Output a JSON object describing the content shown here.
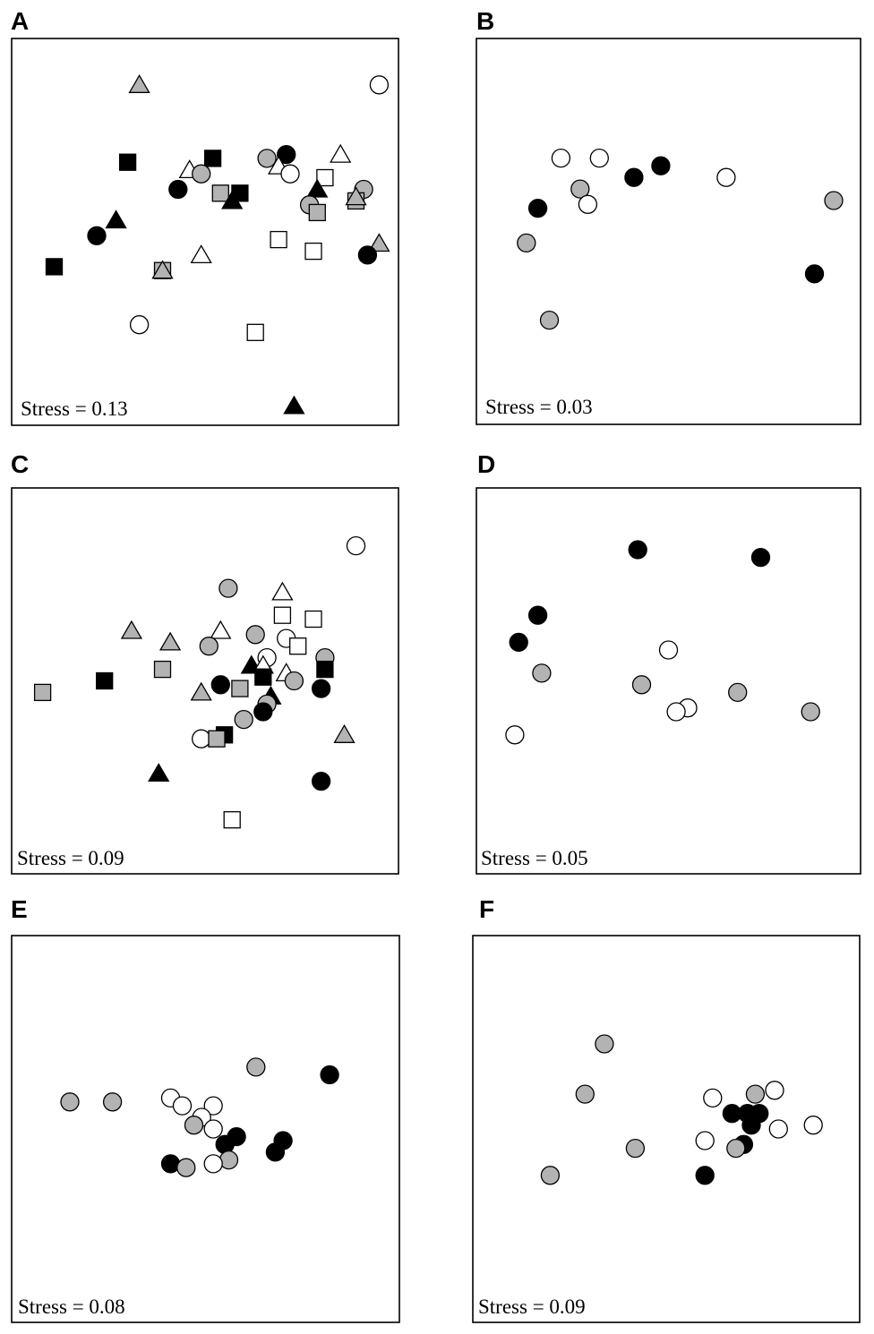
{
  "colors": {
    "black": "#000000",
    "gray": "#b3b3b3",
    "white": "#ffffff",
    "stroke": "#000000"
  },
  "panels": [
    {
      "id": "A",
      "letter": "A",
      "stress": "Stress = 0.13"
    },
    {
      "id": "B",
      "letter": "B",
      "stress": "Stress = 0.03"
    },
    {
      "id": "C",
      "letter": "C",
      "stress": "Stress = 0.09"
    },
    {
      "id": "D",
      "letter": "D",
      "stress": "Stress = 0.05"
    },
    {
      "id": "E",
      "letter": "E",
      "stress": "Stress = 0.08"
    },
    {
      "id": "F",
      "letter": "F",
      "stress": "Stress = 0.09"
    }
  ],
  "chart_data": [
    {
      "panel": "A",
      "type": "scatter",
      "points": [
        {
          "x": 0.33,
          "y": 0.88,
          "shape": "triangle",
          "fill": "gray"
        },
        {
          "x": 0.95,
          "y": 0.88,
          "shape": "circle",
          "fill": "white"
        },
        {
          "x": 0.3,
          "y": 0.68,
          "shape": "square",
          "fill": "black"
        },
        {
          "x": 0.52,
          "y": 0.69,
          "shape": "square",
          "fill": "black"
        },
        {
          "x": 0.46,
          "y": 0.66,
          "shape": "triangle",
          "fill": "white"
        },
        {
          "x": 0.49,
          "y": 0.65,
          "shape": "circle",
          "fill": "gray"
        },
        {
          "x": 0.66,
          "y": 0.69,
          "shape": "circle",
          "fill": "gray"
        },
        {
          "x": 0.71,
          "y": 0.7,
          "shape": "circle",
          "fill": "black"
        },
        {
          "x": 0.69,
          "y": 0.67,
          "shape": "triangle",
          "fill": "white"
        },
        {
          "x": 0.72,
          "y": 0.65,
          "shape": "circle",
          "fill": "white"
        },
        {
          "x": 0.85,
          "y": 0.7,
          "shape": "triangle",
          "fill": "white"
        },
        {
          "x": 0.81,
          "y": 0.64,
          "shape": "square",
          "fill": "white"
        },
        {
          "x": 0.91,
          "y": 0.61,
          "shape": "circle",
          "fill": "gray"
        },
        {
          "x": 0.43,
          "y": 0.61,
          "shape": "circle",
          "fill": "black"
        },
        {
          "x": 0.54,
          "y": 0.6,
          "shape": "square",
          "fill": "gray"
        },
        {
          "x": 0.59,
          "y": 0.6,
          "shape": "square",
          "fill": "black"
        },
        {
          "x": 0.57,
          "y": 0.58,
          "shape": "triangle",
          "fill": "black"
        },
        {
          "x": 0.79,
          "y": 0.61,
          "shape": "triangle",
          "fill": "black"
        },
        {
          "x": 0.77,
          "y": 0.57,
          "shape": "circle",
          "fill": "gray"
        },
        {
          "x": 0.79,
          "y": 0.55,
          "shape": "square",
          "fill": "gray"
        },
        {
          "x": 0.89,
          "y": 0.58,
          "shape": "square",
          "fill": "gray"
        },
        {
          "x": 0.89,
          "y": 0.59,
          "shape": "triangle",
          "fill": "gray"
        },
        {
          "x": 0.27,
          "y": 0.53,
          "shape": "triangle",
          "fill": "black"
        },
        {
          "x": 0.22,
          "y": 0.49,
          "shape": "circle",
          "fill": "black"
        },
        {
          "x": 0.11,
          "y": 0.41,
          "shape": "square",
          "fill": "black"
        },
        {
          "x": 0.95,
          "y": 0.47,
          "shape": "triangle",
          "fill": "gray"
        },
        {
          "x": 0.69,
          "y": 0.48,
          "shape": "square",
          "fill": "white"
        },
        {
          "x": 0.78,
          "y": 0.45,
          "shape": "square",
          "fill": "white"
        },
        {
          "x": 0.92,
          "y": 0.44,
          "shape": "circle",
          "fill": "black"
        },
        {
          "x": 0.49,
          "y": 0.44,
          "shape": "triangle",
          "fill": "white"
        },
        {
          "x": 0.39,
          "y": 0.4,
          "shape": "square",
          "fill": "gray"
        },
        {
          "x": 0.39,
          "y": 0.4,
          "shape": "triangle",
          "fill": "gray"
        },
        {
          "x": 0.33,
          "y": 0.26,
          "shape": "circle",
          "fill": "white"
        },
        {
          "x": 0.63,
          "y": 0.24,
          "shape": "square",
          "fill": "white"
        },
        {
          "x": 0.73,
          "y": 0.05,
          "shape": "triangle",
          "fill": "black"
        }
      ]
    },
    {
      "panel": "B",
      "type": "scatter",
      "points": [
        {
          "x": 0.22,
          "y": 0.69,
          "shape": "circle",
          "fill": "white"
        },
        {
          "x": 0.32,
          "y": 0.69,
          "shape": "circle",
          "fill": "white"
        },
        {
          "x": 0.41,
          "y": 0.64,
          "shape": "circle",
          "fill": "black"
        },
        {
          "x": 0.48,
          "y": 0.67,
          "shape": "circle",
          "fill": "black"
        },
        {
          "x": 0.65,
          "y": 0.64,
          "shape": "circle",
          "fill": "white"
        },
        {
          "x": 0.27,
          "y": 0.61,
          "shape": "circle",
          "fill": "gray"
        },
        {
          "x": 0.29,
          "y": 0.57,
          "shape": "circle",
          "fill": "white"
        },
        {
          "x": 0.16,
          "y": 0.56,
          "shape": "circle",
          "fill": "black"
        },
        {
          "x": 0.93,
          "y": 0.58,
          "shape": "circle",
          "fill": "gray"
        },
        {
          "x": 0.13,
          "y": 0.47,
          "shape": "circle",
          "fill": "gray"
        },
        {
          "x": 0.88,
          "y": 0.39,
          "shape": "circle",
          "fill": "black"
        },
        {
          "x": 0.19,
          "y": 0.27,
          "shape": "circle",
          "fill": "gray"
        }
      ]
    },
    {
      "panel": "C",
      "type": "scatter",
      "points": [
        {
          "x": 0.89,
          "y": 0.85,
          "shape": "circle",
          "fill": "white"
        },
        {
          "x": 0.56,
          "y": 0.74,
          "shape": "circle",
          "fill": "gray"
        },
        {
          "x": 0.7,
          "y": 0.73,
          "shape": "triangle",
          "fill": "white"
        },
        {
          "x": 0.7,
          "y": 0.67,
          "shape": "square",
          "fill": "white"
        },
        {
          "x": 0.78,
          "y": 0.66,
          "shape": "square",
          "fill": "white"
        },
        {
          "x": 0.31,
          "y": 0.63,
          "shape": "triangle",
          "fill": "gray"
        },
        {
          "x": 0.54,
          "y": 0.63,
          "shape": "triangle",
          "fill": "white"
        },
        {
          "x": 0.63,
          "y": 0.62,
          "shape": "circle",
          "fill": "gray"
        },
        {
          "x": 0.71,
          "y": 0.61,
          "shape": "circle",
          "fill": "white"
        },
        {
          "x": 0.41,
          "y": 0.6,
          "shape": "triangle",
          "fill": "gray"
        },
        {
          "x": 0.51,
          "y": 0.59,
          "shape": "circle",
          "fill": "gray"
        },
        {
          "x": 0.74,
          "y": 0.59,
          "shape": "square",
          "fill": "white"
        },
        {
          "x": 0.66,
          "y": 0.56,
          "shape": "circle",
          "fill": "white"
        },
        {
          "x": 0.81,
          "y": 0.56,
          "shape": "circle",
          "fill": "gray"
        },
        {
          "x": 0.62,
          "y": 0.54,
          "shape": "triangle",
          "fill": "black"
        },
        {
          "x": 0.65,
          "y": 0.54,
          "shape": "triangle",
          "fill": "white"
        },
        {
          "x": 0.81,
          "y": 0.53,
          "shape": "square",
          "fill": "black"
        },
        {
          "x": 0.39,
          "y": 0.53,
          "shape": "square",
          "fill": "gray"
        },
        {
          "x": 0.65,
          "y": 0.51,
          "shape": "square",
          "fill": "black"
        },
        {
          "x": 0.71,
          "y": 0.52,
          "shape": "triangle",
          "fill": "white"
        },
        {
          "x": 0.73,
          "y": 0.5,
          "shape": "circle",
          "fill": "gray"
        },
        {
          "x": 0.24,
          "y": 0.5,
          "shape": "square",
          "fill": "black"
        },
        {
          "x": 0.54,
          "y": 0.49,
          "shape": "circle",
          "fill": "black"
        },
        {
          "x": 0.59,
          "y": 0.48,
          "shape": "square",
          "fill": "gray"
        },
        {
          "x": 0.8,
          "y": 0.48,
          "shape": "circle",
          "fill": "black"
        },
        {
          "x": 0.08,
          "y": 0.47,
          "shape": "square",
          "fill": "gray"
        },
        {
          "x": 0.49,
          "y": 0.47,
          "shape": "triangle",
          "fill": "gray"
        },
        {
          "x": 0.67,
          "y": 0.46,
          "shape": "triangle",
          "fill": "black"
        },
        {
          "x": 0.66,
          "y": 0.44,
          "shape": "circle",
          "fill": "gray"
        },
        {
          "x": 0.65,
          "y": 0.42,
          "shape": "circle",
          "fill": "black"
        },
        {
          "x": 0.6,
          "y": 0.4,
          "shape": "circle",
          "fill": "gray"
        },
        {
          "x": 0.86,
          "y": 0.36,
          "shape": "triangle",
          "fill": "gray"
        },
        {
          "x": 0.55,
          "y": 0.36,
          "shape": "square",
          "fill": "black"
        },
        {
          "x": 0.49,
          "y": 0.35,
          "shape": "circle",
          "fill": "white"
        },
        {
          "x": 0.53,
          "y": 0.35,
          "shape": "square",
          "fill": "gray"
        },
        {
          "x": 0.38,
          "y": 0.26,
          "shape": "triangle",
          "fill": "black"
        },
        {
          "x": 0.8,
          "y": 0.24,
          "shape": "circle",
          "fill": "black"
        },
        {
          "x": 0.57,
          "y": 0.14,
          "shape": "square",
          "fill": "white"
        }
      ]
    },
    {
      "panel": "D",
      "type": "scatter",
      "points": [
        {
          "x": 0.42,
          "y": 0.84,
          "shape": "circle",
          "fill": "black"
        },
        {
          "x": 0.74,
          "y": 0.82,
          "shape": "circle",
          "fill": "black"
        },
        {
          "x": 0.16,
          "y": 0.67,
          "shape": "circle",
          "fill": "black"
        },
        {
          "x": 0.11,
          "y": 0.6,
          "shape": "circle",
          "fill": "black"
        },
        {
          "x": 0.5,
          "y": 0.58,
          "shape": "circle",
          "fill": "white"
        },
        {
          "x": 0.17,
          "y": 0.52,
          "shape": "circle",
          "fill": "gray"
        },
        {
          "x": 0.43,
          "y": 0.49,
          "shape": "circle",
          "fill": "gray"
        },
        {
          "x": 0.68,
          "y": 0.47,
          "shape": "circle",
          "fill": "gray"
        },
        {
          "x": 0.55,
          "y": 0.43,
          "shape": "circle",
          "fill": "white"
        },
        {
          "x": 0.52,
          "y": 0.42,
          "shape": "circle",
          "fill": "white"
        },
        {
          "x": 0.87,
          "y": 0.42,
          "shape": "circle",
          "fill": "gray"
        },
        {
          "x": 0.1,
          "y": 0.36,
          "shape": "circle",
          "fill": "white"
        }
      ]
    },
    {
      "panel": "E",
      "type": "scatter",
      "points": [
        {
          "x": 0.63,
          "y": 0.66,
          "shape": "circle",
          "fill": "gray"
        },
        {
          "x": 0.82,
          "y": 0.64,
          "shape": "circle",
          "fill": "black"
        },
        {
          "x": 0.15,
          "y": 0.57,
          "shape": "circle",
          "fill": "gray"
        },
        {
          "x": 0.26,
          "y": 0.57,
          "shape": "circle",
          "fill": "gray"
        },
        {
          "x": 0.41,
          "y": 0.58,
          "shape": "circle",
          "fill": "white"
        },
        {
          "x": 0.44,
          "y": 0.56,
          "shape": "circle",
          "fill": "white"
        },
        {
          "x": 0.52,
          "y": 0.56,
          "shape": "circle",
          "fill": "white"
        },
        {
          "x": 0.49,
          "y": 0.53,
          "shape": "circle",
          "fill": "white"
        },
        {
          "x": 0.47,
          "y": 0.51,
          "shape": "circle",
          "fill": "gray"
        },
        {
          "x": 0.52,
          "y": 0.5,
          "shape": "circle",
          "fill": "white"
        },
        {
          "x": 0.58,
          "y": 0.48,
          "shape": "circle",
          "fill": "black"
        },
        {
          "x": 0.55,
          "y": 0.46,
          "shape": "circle",
          "fill": "black"
        },
        {
          "x": 0.7,
          "y": 0.47,
          "shape": "circle",
          "fill": "black"
        },
        {
          "x": 0.68,
          "y": 0.44,
          "shape": "circle",
          "fill": "black"
        },
        {
          "x": 0.56,
          "y": 0.42,
          "shape": "circle",
          "fill": "gray"
        },
        {
          "x": 0.52,
          "y": 0.41,
          "shape": "circle",
          "fill": "white"
        },
        {
          "x": 0.41,
          "y": 0.41,
          "shape": "circle",
          "fill": "black"
        },
        {
          "x": 0.45,
          "y": 0.4,
          "shape": "circle",
          "fill": "gray"
        }
      ]
    },
    {
      "panel": "F",
      "type": "scatter",
      "points": [
        {
          "x": 0.34,
          "y": 0.72,
          "shape": "circle",
          "fill": "gray"
        },
        {
          "x": 0.29,
          "y": 0.59,
          "shape": "circle",
          "fill": "gray"
        },
        {
          "x": 0.73,
          "y": 0.59,
          "shape": "circle",
          "fill": "gray"
        },
        {
          "x": 0.78,
          "y": 0.6,
          "shape": "circle",
          "fill": "white"
        },
        {
          "x": 0.62,
          "y": 0.58,
          "shape": "circle",
          "fill": "white"
        },
        {
          "x": 0.67,
          "y": 0.54,
          "shape": "circle",
          "fill": "black"
        },
        {
          "x": 0.71,
          "y": 0.54,
          "shape": "circle",
          "fill": "black"
        },
        {
          "x": 0.74,
          "y": 0.54,
          "shape": "circle",
          "fill": "black"
        },
        {
          "x": 0.72,
          "y": 0.51,
          "shape": "circle",
          "fill": "black"
        },
        {
          "x": 0.79,
          "y": 0.5,
          "shape": "circle",
          "fill": "white"
        },
        {
          "x": 0.88,
          "y": 0.51,
          "shape": "circle",
          "fill": "white"
        },
        {
          "x": 0.6,
          "y": 0.47,
          "shape": "circle",
          "fill": "white"
        },
        {
          "x": 0.7,
          "y": 0.46,
          "shape": "circle",
          "fill": "black"
        },
        {
          "x": 0.68,
          "y": 0.45,
          "shape": "circle",
          "fill": "gray"
        },
        {
          "x": 0.42,
          "y": 0.45,
          "shape": "circle",
          "fill": "gray"
        },
        {
          "x": 0.2,
          "y": 0.38,
          "shape": "circle",
          "fill": "gray"
        },
        {
          "x": 0.6,
          "y": 0.38,
          "shape": "circle",
          "fill": "black"
        }
      ]
    }
  ]
}
